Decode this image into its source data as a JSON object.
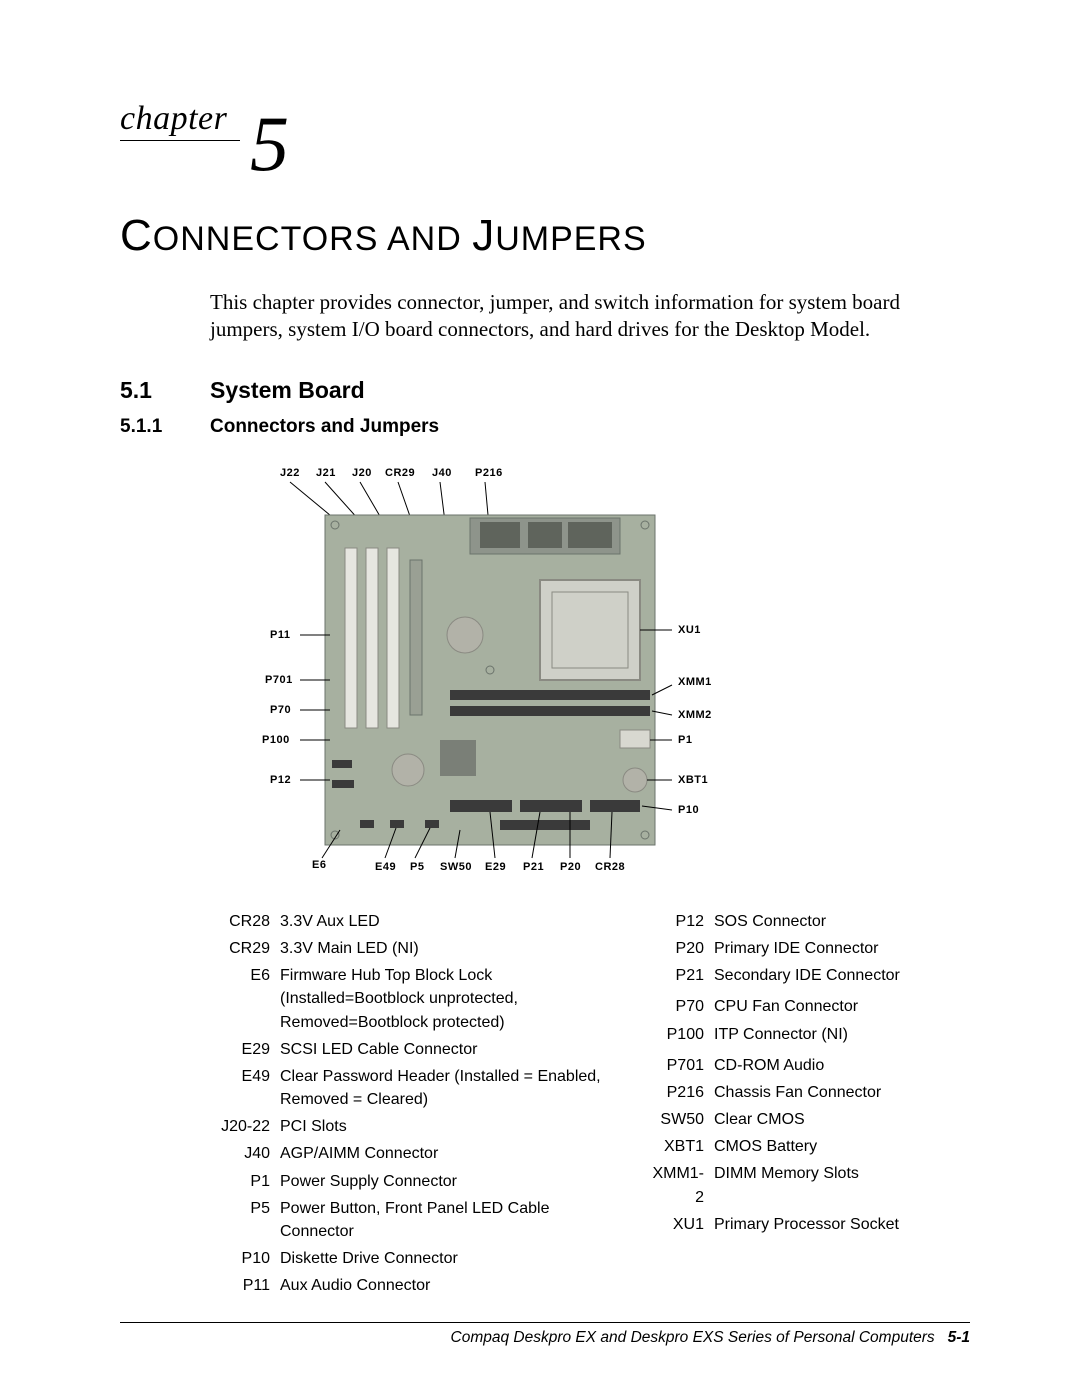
{
  "chapter": {
    "word": "chapter",
    "num": "5"
  },
  "title_parts": [
    "C",
    "ONNECTORS AND ",
    "J",
    "UMPERS"
  ],
  "intro": "This chapter provides connector, jumper, and switch information for system board jumpers, system I/O board connectors, and hard drives for the Desktop Model.",
  "section": {
    "num": "5.1",
    "title": "System Board"
  },
  "subsection": {
    "num": "5.1.1",
    "title": "Connectors and Jumpers"
  },
  "diagram": {
    "board_fill": "#a7b0a0",
    "board_stroke": "#6b736b",
    "slot_fill": "#e6e6e0",
    "slot_stroke": "#8a8a82",
    "cpu_fill": "#cfd0c8",
    "chip_fill": "#7a7f77",
    "header_fill": "#3a3a3a",
    "battery_fill": "#b2b2a8",
    "labels_top": [
      "J22",
      "J21",
      "J20",
      "CR29",
      "J40",
      "P216"
    ],
    "labels_left": [
      "P11",
      "P701",
      "P70",
      "P100",
      "P12",
      "E6"
    ],
    "labels_right": [
      "XU1",
      "XMM1",
      "XMM2",
      "P1",
      "XBT1",
      "P10"
    ],
    "labels_bottom": [
      "E49",
      "P5",
      "SW50",
      "E29",
      "P21",
      "P20",
      "CR28"
    ]
  },
  "left_table": [
    {
      "k": "CR28",
      "v": "3.3V Aux LED"
    },
    {
      "k": "CR29",
      "v": "3.3V Main LED (NI)"
    },
    {
      "k": "E6",
      "v": "Firmware Hub Top Block Lock (Installed=Bootblock unprotected, Removed=Bootblock protected)"
    },
    {
      "k": "E29",
      "v": "SCSI LED Cable Connector"
    },
    {
      "k": "E49",
      "v": "Clear Password Header (Installed = Enabled, Removed = Cleared)"
    },
    {
      "k": "J20-22",
      "v": "PCI Slots"
    },
    {
      "k": "J40",
      "v": "AGP/AIMM Connector"
    },
    {
      "k": "P1",
      "v": "Power Supply Connector"
    },
    {
      "k": "P5",
      "v": "Power Button, Front Panel LED Cable Connector"
    },
    {
      "k": "P10",
      "v": "Diskette Drive Connector"
    },
    {
      "k": "P11",
      "v": "Aux Audio Connector"
    }
  ],
  "right_table": [
    {
      "k": "P12",
      "v": "SOS Connector"
    },
    {
      "k": "P20",
      "v": "Primary IDE Connector"
    },
    {
      "k": "P21",
      "v": "Secondary IDE Connector"
    },
    {
      "k": "",
      "v": ""
    },
    {
      "k": "P70",
      "v": "CPU Fan Connector"
    },
    {
      "k": "P100",
      "v": "ITP Connector (NI)"
    },
    {
      "k": "",
      "v": ""
    },
    {
      "k": "P701",
      "v": "CD-ROM Audio"
    },
    {
      "k": "P216",
      "v": "Chassis Fan Connector"
    },
    {
      "k": "SW50",
      "v": "Clear CMOS"
    },
    {
      "k": "XBT1",
      "v": "CMOS Battery"
    },
    {
      "k": "XMM1-2",
      "v": "DIMM Memory Slots"
    },
    {
      "k": "XU1",
      "v": "Primary Processor Socket"
    }
  ],
  "footer": {
    "text": "Compaq Deskpro EX and Deskpro EXS Series of Personal Computers",
    "page": "5-1"
  }
}
